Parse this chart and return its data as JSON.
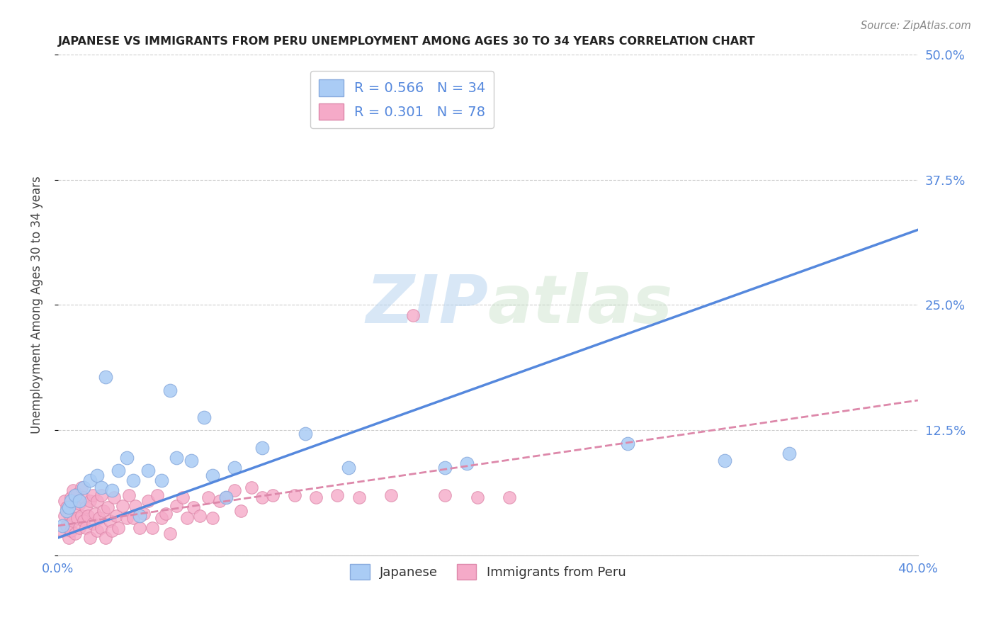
{
  "title": "JAPANESE VS IMMIGRANTS FROM PERU UNEMPLOYMENT AMONG AGES 30 TO 34 YEARS CORRELATION CHART",
  "source": "Source: ZipAtlas.com",
  "ylabel": "Unemployment Among Ages 30 to 34 years",
  "xlim": [
    0.0,
    0.4
  ],
  "ylim": [
    0.0,
    0.5
  ],
  "ytick_positions": [
    0.0,
    0.125,
    0.25,
    0.375,
    0.5
  ],
  "yticklabels_right": [
    "",
    "12.5%",
    "25.0%",
    "37.5%",
    "50.0%"
  ],
  "japanese_color": "#aaccf5",
  "japanese_edge_color": "#88aadd",
  "peru_color": "#f5aac8",
  "peru_edge_color": "#dd88aa",
  "line_japanese_color": "#5588dd",
  "line_peru_color": "#dd88aa",
  "R_japanese": 0.566,
  "N_japanese": 34,
  "R_peru": 0.301,
  "N_peru": 78,
  "watermark_zip": "ZIP",
  "watermark_atlas": "atlas",
  "background_color": "#ffffff",
  "grid_color": "#cccccc",
  "legend_label_japanese": "Japanese",
  "legend_label_peru": "Immigrants from Peru",
  "japanese_x": [
    0.002,
    0.004,
    0.005,
    0.006,
    0.008,
    0.01,
    0.012,
    0.015,
    0.018,
    0.02,
    0.022,
    0.025,
    0.028,
    0.032,
    0.035,
    0.038,
    0.042,
    0.048,
    0.052,
    0.055,
    0.062,
    0.068,
    0.072,
    0.078,
    0.082,
    0.095,
    0.115,
    0.135,
    0.165,
    0.18,
    0.19,
    0.265,
    0.31,
    0.34
  ],
  "japanese_y": [
    0.03,
    0.045,
    0.048,
    0.055,
    0.06,
    0.055,
    0.068,
    0.075,
    0.08,
    0.068,
    0.178,
    0.065,
    0.085,
    0.098,
    0.075,
    0.04,
    0.085,
    0.075,
    0.165,
    0.098,
    0.095,
    0.138,
    0.08,
    0.058,
    0.088,
    0.108,
    0.122,
    0.088,
    0.435,
    0.088,
    0.092,
    0.112,
    0.095,
    0.102
  ],
  "peru_x": [
    0.002,
    0.003,
    0.003,
    0.004,
    0.004,
    0.005,
    0.005,
    0.006,
    0.006,
    0.007,
    0.007,
    0.008,
    0.008,
    0.009,
    0.009,
    0.01,
    0.01,
    0.011,
    0.011,
    0.012,
    0.012,
    0.013,
    0.013,
    0.014,
    0.015,
    0.015,
    0.016,
    0.016,
    0.017,
    0.018,
    0.018,
    0.019,
    0.02,
    0.02,
    0.021,
    0.022,
    0.023,
    0.024,
    0.025,
    0.026,
    0.027,
    0.028,
    0.03,
    0.032,
    0.033,
    0.035,
    0.036,
    0.038,
    0.04,
    0.042,
    0.044,
    0.046,
    0.048,
    0.05,
    0.052,
    0.055,
    0.058,
    0.06,
    0.063,
    0.066,
    0.07,
    0.072,
    0.075,
    0.078,
    0.082,
    0.085,
    0.09,
    0.095,
    0.1,
    0.11,
    0.12,
    0.13,
    0.14,
    0.155,
    0.165,
    0.18,
    0.195,
    0.21
  ],
  "peru_y": [
    0.025,
    0.04,
    0.055,
    0.03,
    0.048,
    0.018,
    0.042,
    0.025,
    0.058,
    0.035,
    0.065,
    0.022,
    0.048,
    0.038,
    0.062,
    0.028,
    0.052,
    0.04,
    0.068,
    0.035,
    0.058,
    0.028,
    0.048,
    0.04,
    0.018,
    0.055,
    0.032,
    0.06,
    0.042,
    0.025,
    0.055,
    0.038,
    0.028,
    0.06,
    0.045,
    0.018,
    0.048,
    0.035,
    0.025,
    0.058,
    0.04,
    0.028,
    0.05,
    0.038,
    0.06,
    0.038,
    0.05,
    0.028,
    0.042,
    0.055,
    0.028,
    0.06,
    0.038,
    0.042,
    0.022,
    0.05,
    0.058,
    0.038,
    0.048,
    0.04,
    0.058,
    0.038,
    0.055,
    0.058,
    0.065,
    0.045,
    0.068,
    0.058,
    0.06,
    0.06,
    0.058,
    0.06,
    0.058,
    0.06,
    0.24,
    0.06,
    0.058,
    0.058
  ],
  "jp_line_x0": 0.0,
  "jp_line_y0": 0.018,
  "jp_line_x1": 0.4,
  "jp_line_y1": 0.325,
  "pe_line_x0": 0.0,
  "pe_line_y0": 0.03,
  "pe_line_x1": 0.4,
  "pe_line_y1": 0.155
}
